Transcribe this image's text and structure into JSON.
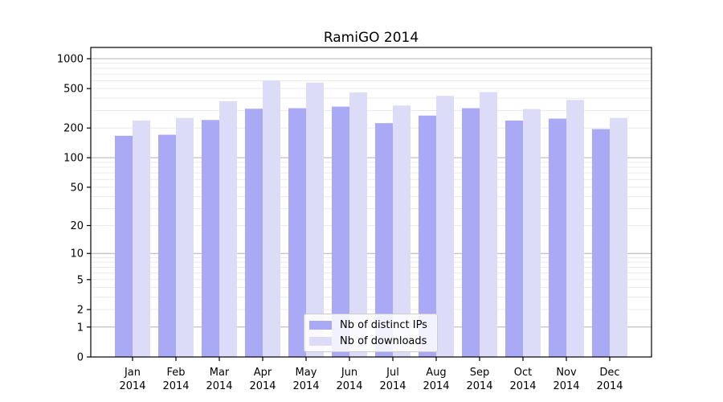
{
  "title": "RamiGO 2014",
  "colors": {
    "background": "#ffffff",
    "axis": "#000000",
    "grid_major": "#b0b0b0",
    "grid_minor": "#eaeaea",
    "distinct_ips": "#a9a9f5",
    "downloads": "#dcdcf8"
  },
  "y_axis": {
    "scale": "log10(value+1)",
    "tick_values": [
      1000,
      500,
      200,
      100,
      50,
      20,
      10,
      5,
      2,
      1,
      0
    ],
    "tick_labels": [
      "1000",
      "500",
      "200",
      "100",
      "50",
      "20",
      "10",
      "5",
      "2",
      "1",
      "0"
    ]
  },
  "chart_data": {
    "type": "bar",
    "title": "RamiGO 2014",
    "categories": [
      "Jan 2014",
      "Feb 2014",
      "Mar 2014",
      "Apr 2014",
      "May 2014",
      "Jun 2014",
      "Jul 2014",
      "Aug 2014",
      "Sep 2014",
      "Oct 2014",
      "Nov 2014",
      "Dec 2014"
    ],
    "series": [
      {
        "name": "Nb of distinct IPs",
        "color": "#a9a9f5",
        "values": [
          167,
          171,
          241,
          313,
          317,
          329,
          224,
          267,
          317,
          238,
          249,
          195
        ]
      },
      {
        "name": "Nb of downloads",
        "color": "#dcdcf8",
        "values": [
          238,
          253,
          372,
          602,
          575,
          457,
          337,
          422,
          461,
          311,
          384,
          253
        ]
      }
    ],
    "xlabel": "",
    "ylabel": "",
    "ylim": [
      0,
      1100
    ],
    "grid": "horizontal, log decades major + 2-9 minors",
    "legend_position": "inside, lower center"
  }
}
